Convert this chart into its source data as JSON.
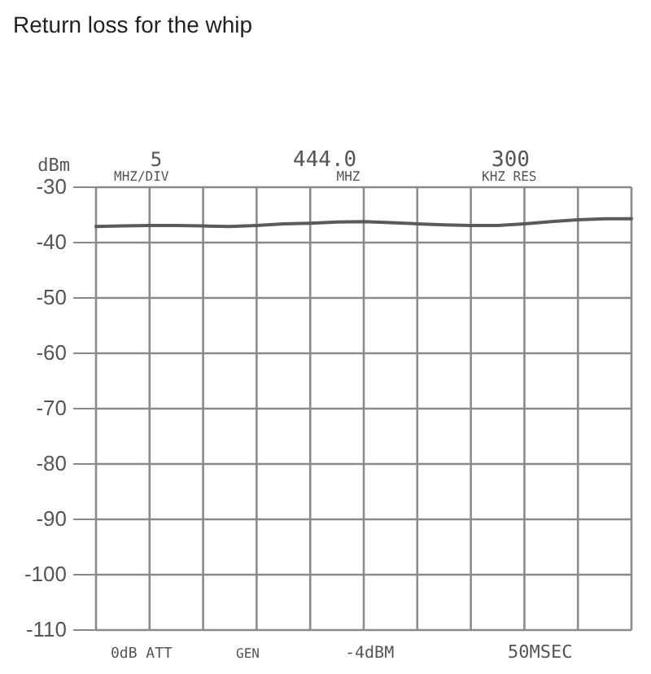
{
  "chart_data": {
    "type": "line",
    "title": "Return loss for the whip",
    "ylabel": "dBm",
    "categories": [
      null,
      null,
      null,
      null,
      null,
      null,
      null,
      null,
      null,
      null,
      null,
      null,
      null,
      null,
      null,
      null,
      null,
      null,
      null,
      null,
      null
    ],
    "series": [
      {
        "color": "#5a5a5a",
        "values": [
          -37.1,
          -37.0,
          -36.9,
          -36.9,
          -37.0,
          -37.1,
          -36.9,
          -36.6,
          -36.5,
          -36.3,
          -36.2,
          -36.4,
          -36.6,
          -36.8,
          -36.9,
          -36.9,
          -36.6,
          -36.2,
          -35.9,
          -35.7,
          -35.7
        ]
      }
    ],
    "ylim": [
      -110,
      -30
    ],
    "yticks": [
      -30,
      -40,
      -50,
      -60,
      -70,
      -80,
      -90,
      -100,
      -110
    ],
    "grid": true,
    "annotations": [
      "5",
      "MHZ/DIV",
      "444.0",
      "MHZ",
      "300",
      "KHZ RES",
      "0dB ATT",
      "GEN",
      "-4dBM",
      "50MSEC"
    ]
  }
}
